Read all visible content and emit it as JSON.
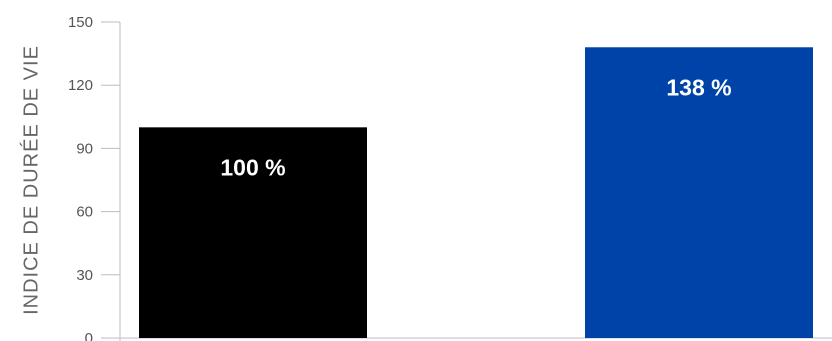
{
  "chart_data": {
    "type": "bar",
    "categories": [
      "",
      ""
    ],
    "values": [
      100,
      138
    ],
    "data_labels": [
      "100 %",
      "138 %"
    ],
    "colors": [
      "#000000",
      "#0043a8"
    ],
    "ylabel": "INDICE DE DURÉE DE VIE",
    "ylim": [
      0,
      150
    ],
    "yticks": [
      0,
      30,
      60,
      90,
      120,
      150
    ],
    "grid": false,
    "legend": "none"
  }
}
